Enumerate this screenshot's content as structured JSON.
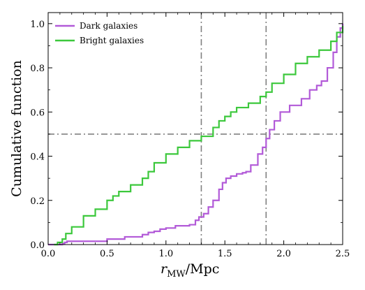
{
  "chart_data": {
    "type": "line",
    "step": true,
    "title": "",
    "xlabel_main": "r",
    "xlabel_sub": "MW",
    "xlabel_unit": "/Mpc",
    "ylabel": "Cumulative function",
    "xlim": [
      0.0,
      2.5
    ],
    "ylim": [
      0.0,
      1.05
    ],
    "xticks": [
      0.0,
      0.5,
      1.0,
      1.5,
      2.0,
      2.5
    ],
    "xtick_labels": [
      "0.0",
      "0.5",
      "1.0",
      "1.5",
      "2.0",
      "2.5"
    ],
    "yticks": [
      0.0,
      0.2,
      0.4,
      0.6,
      0.8,
      1.0
    ],
    "ytick_labels": [
      "0.0",
      "0.2",
      "0.4",
      "0.6",
      "0.8",
      "1.0"
    ],
    "grid": false,
    "legend_position": "top-left",
    "reference_lines": {
      "horizontal": [
        0.5
      ],
      "vertical": [
        1.3,
        1.85
      ],
      "color": "#808080"
    },
    "series": [
      {
        "name": "Dark galaxies",
        "color": "#b25ad8",
        "x": [
          0.0,
          0.05,
          0.1,
          0.12,
          0.14,
          0.16,
          0.3,
          0.5,
          0.65,
          0.8,
          0.85,
          0.9,
          0.95,
          1.0,
          1.08,
          1.2,
          1.25,
          1.28,
          1.32,
          1.36,
          1.4,
          1.45,
          1.48,
          1.51,
          1.55,
          1.6,
          1.65,
          1.68,
          1.72,
          1.78,
          1.82,
          1.85,
          1.88,
          1.92,
          1.97,
          2.05,
          2.15,
          2.22,
          2.28,
          2.32,
          2.37,
          2.42,
          2.45,
          2.48,
          2.5
        ],
        "y": [
          0.0,
          0.0,
          0.0,
          0.005,
          0.01,
          0.015,
          0.015,
          0.025,
          0.035,
          0.045,
          0.055,
          0.06,
          0.07,
          0.075,
          0.085,
          0.09,
          0.11,
          0.125,
          0.14,
          0.17,
          0.2,
          0.25,
          0.28,
          0.3,
          0.31,
          0.32,
          0.325,
          0.33,
          0.36,
          0.41,
          0.44,
          0.48,
          0.52,
          0.56,
          0.6,
          0.63,
          0.66,
          0.7,
          0.72,
          0.74,
          0.8,
          0.87,
          0.94,
          0.98,
          1.0
        ]
      },
      {
        "name": "Bright galaxies",
        "color": "#3cc83c",
        "x": [
          0.05,
          0.08,
          0.12,
          0.15,
          0.2,
          0.3,
          0.4,
          0.5,
          0.55,
          0.6,
          0.7,
          0.8,
          0.85,
          0.9,
          1.0,
          1.1,
          1.2,
          1.3,
          1.4,
          1.45,
          1.5,
          1.55,
          1.6,
          1.7,
          1.8,
          1.85,
          1.9,
          2.0,
          2.1,
          2.2,
          2.3,
          2.4,
          2.45,
          2.5
        ],
        "y": [
          0.0,
          0.01,
          0.025,
          0.05,
          0.08,
          0.13,
          0.16,
          0.2,
          0.22,
          0.24,
          0.27,
          0.3,
          0.33,
          0.37,
          0.41,
          0.44,
          0.47,
          0.49,
          0.53,
          0.56,
          0.58,
          0.6,
          0.62,
          0.64,
          0.67,
          0.69,
          0.73,
          0.77,
          0.82,
          0.85,
          0.88,
          0.92,
          0.96,
          0.99
        ]
      }
    ]
  }
}
